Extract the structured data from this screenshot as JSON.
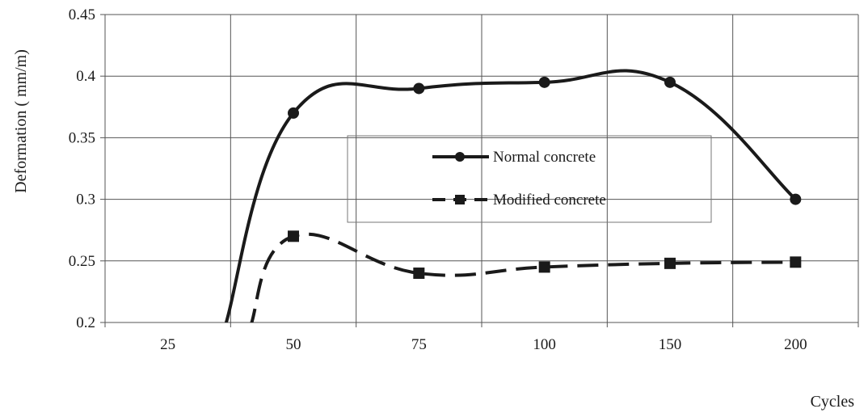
{
  "chart_data": {
    "type": "line",
    "categories": [
      "25",
      "50",
      "75",
      "100",
      "150",
      "200"
    ],
    "x_tick_labels": [
      "25",
      "50",
      "75",
      "100",
      "150",
      "200"
    ],
    "y_tick_labels": [
      "0.2",
      "0.25",
      "0.3",
      "0.35",
      "0.4",
      "0.45"
    ],
    "ylabel": "Deformation ( mm/m)",
    "xlabel": "Cycles",
    "ylim": [
      0.2,
      0.45
    ],
    "grid": true,
    "legend_position": "center",
    "series": [
      {
        "name": "Normal concrete",
        "values": [
          null,
          0.37,
          0.39,
          0.395,
          0.395,
          0.3
        ],
        "marker": "circle",
        "line_style": "solid",
        "color": "#1a1a1a"
      },
      {
        "name": "Modified concrete",
        "values": [
          null,
          0.27,
          0.24,
          0.245,
          0.248,
          0.249
        ],
        "marker": "square",
        "line_style": "dashed",
        "color": "#1a1a1a"
      }
    ]
  }
}
